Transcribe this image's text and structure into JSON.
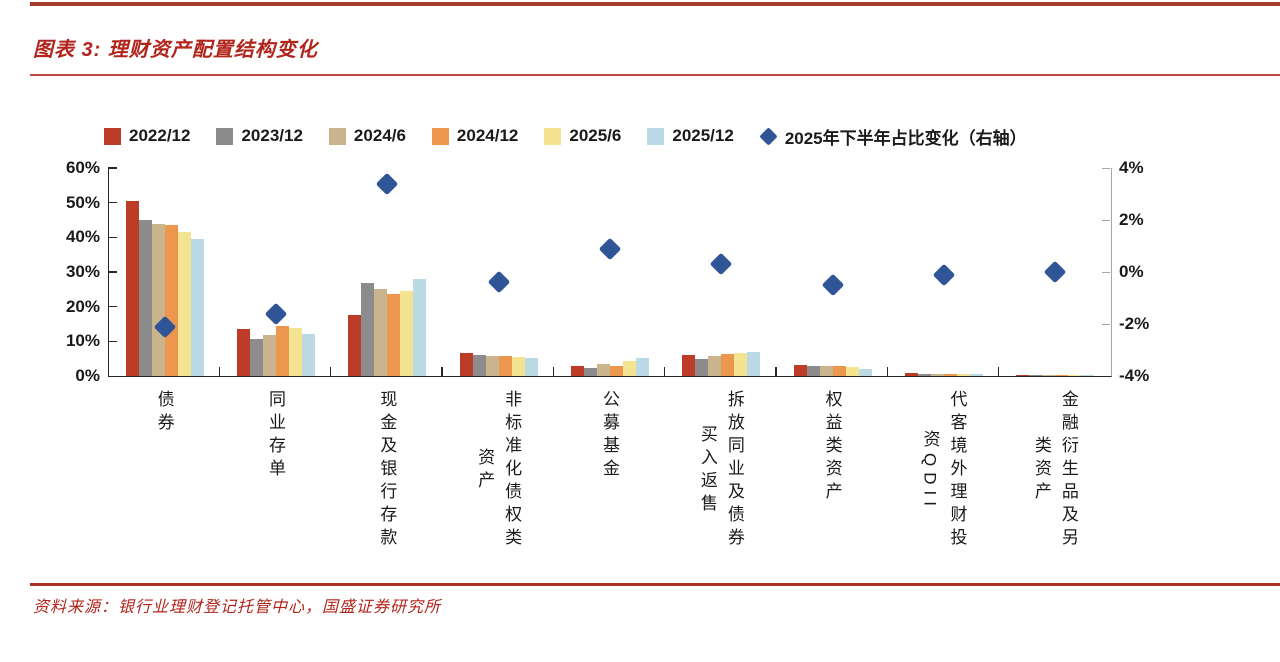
{
  "title": "图表 3: 理财资产配置结构变化",
  "source": "资料来源：银行业理财登记托管中心，国盛证券研究所",
  "colors": {
    "title_red": "#B2251C",
    "rule_red": "#A93226",
    "axis_black": "#262626",
    "right_axis_gray": "#A6A6A6",
    "diamond_blue": "#2F5597"
  },
  "chart_data": {
    "type": "bar",
    "title": "理财资产配置结构变化",
    "grid": false,
    "legend_position": "top",
    "categories": [
      "债券",
      "同业存单",
      "现金及银行存款",
      "非标准化债权类资产",
      "公募基金",
      "拆放同业及债券买入返售",
      "权益类资产",
      "代客境外理财投资QDII",
      "金融衍生品及另类资产"
    ],
    "category_label_columns": [
      [
        "债券"
      ],
      [
        "同业存单"
      ],
      [
        "现金及银行存款"
      ],
      [
        "非标准化债权类",
        "资产"
      ],
      [
        "公募基金"
      ],
      [
        "拆放同业及债券",
        "买入返售"
      ],
      [
        "权益类资产"
      ],
      [
        "代客境外理财投",
        "资QDII"
      ],
      [
        "金融衍生品及另",
        "类资产"
      ]
    ],
    "series": [
      {
        "name": "2022/12",
        "color": "#BC3C28",
        "values": [
          50.5,
          13.5,
          17.5,
          6.7,
          2.8,
          6.0,
          3.2,
          0.8,
          0.4
        ]
      },
      {
        "name": "2023/12",
        "color": "#8C8C8C",
        "values": [
          45.0,
          10.8,
          26.7,
          6.1,
          2.3,
          4.9,
          2.9,
          0.5,
          0.2
        ]
      },
      {
        "name": "2024/6",
        "color": "#C9B48E",
        "values": [
          43.8,
          11.9,
          25.2,
          5.8,
          3.4,
          5.8,
          2.8,
          0.6,
          0.2
        ]
      },
      {
        "name": "2024/12",
        "color": "#ED964D",
        "values": [
          43.5,
          14.5,
          23.8,
          5.7,
          3.0,
          6.4,
          2.8,
          0.7,
          0.2
        ]
      },
      {
        "name": "2025/6",
        "color": "#F4E391",
        "values": [
          41.5,
          13.8,
          24.6,
          5.6,
          4.4,
          6.7,
          2.5,
          0.6,
          0.2
        ]
      },
      {
        "name": "2025/12",
        "color": "#BCDAE5",
        "values": [
          39.4,
          12.2,
          28.0,
          5.2,
          5.3,
          7.0,
          2.0,
          0.5,
          0.2
        ]
      }
    ],
    "scatter_series": {
      "name": "2025年下半年占比变化（右轴）",
      "marker": "diamond",
      "color": "#2F5597",
      "axis": "right",
      "values": [
        -2.1,
        -1.6,
        3.4,
        -0.4,
        0.9,
        0.3,
        -0.5,
        -0.1,
        0.0
      ]
    },
    "left_axis": {
      "min": 0,
      "max": 60,
      "ticks": [
        "60%",
        "50%",
        "40%",
        "30%",
        "20%",
        "10%",
        "0%"
      ]
    },
    "right_axis": {
      "min": -4,
      "max": 4,
      "ticks": [
        "4%",
        "2%",
        "0%",
        "-2%",
        "-4%"
      ],
      "label": "右轴"
    }
  }
}
